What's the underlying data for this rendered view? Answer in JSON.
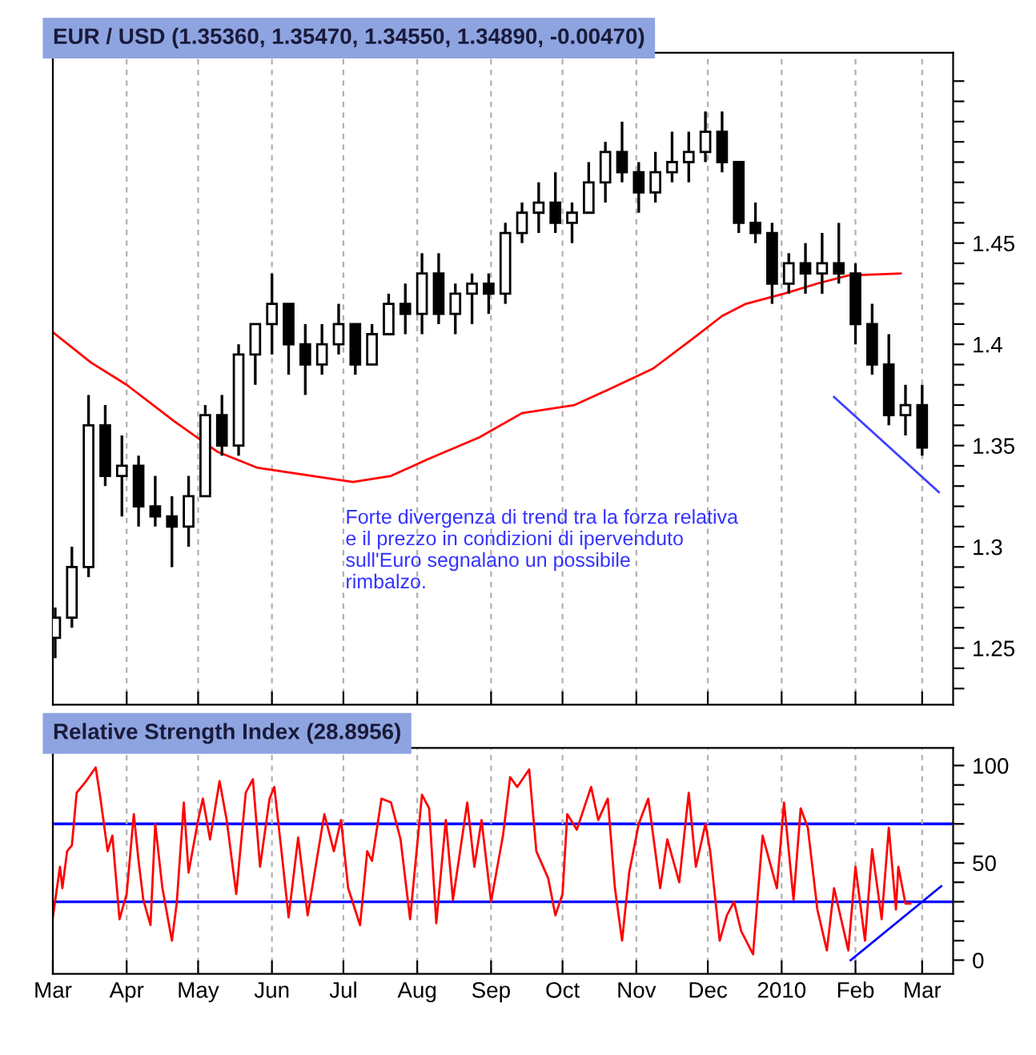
{
  "chart_data": [
    {
      "type": "candlestick",
      "title": "EUR / USD (1.35360, 1.35470, 1.34550, 1.34890, -0.00470)",
      "color": "#000000",
      "x": [
        "2009-03-02",
        "2009-03-09",
        "2009-03-16",
        "2009-03-23",
        "2009-03-30",
        "2009-04-06",
        "2009-04-13",
        "2009-04-20",
        "2009-04-27",
        "2009-05-04",
        "2009-05-11",
        "2009-05-18",
        "2009-05-25",
        "2009-06-01",
        "2009-06-08",
        "2009-06-15",
        "2009-06-22",
        "2009-06-29",
        "2009-07-06",
        "2009-07-13",
        "2009-07-20",
        "2009-07-27",
        "2009-08-03",
        "2009-08-10",
        "2009-08-17",
        "2009-08-24",
        "2009-08-31",
        "2009-09-07",
        "2009-09-14",
        "2009-09-21",
        "2009-09-28",
        "2009-10-05",
        "2009-10-12",
        "2009-10-19",
        "2009-10-26",
        "2009-11-02",
        "2009-11-09",
        "2009-11-16",
        "2009-11-23",
        "2009-11-30",
        "2009-12-07",
        "2009-12-14",
        "2009-12-21",
        "2009-12-28",
        "2010-01-04",
        "2010-01-11",
        "2010-01-18",
        "2010-01-25",
        "2010-02-01",
        "2010-02-08",
        "2010-02-15",
        "2010-02-22",
        "2010-03-01"
      ],
      "ohlc": [
        [
          1.255,
          1.27,
          1.245,
          1.265
        ],
        [
          1.265,
          1.3,
          1.26,
          1.29
        ],
        [
          1.29,
          1.375,
          1.285,
          1.36
        ],
        [
          1.36,
          1.37,
          1.33,
          1.335
        ],
        [
          1.335,
          1.355,
          1.315,
          1.34
        ],
        [
          1.34,
          1.345,
          1.31,
          1.32
        ],
        [
          1.32,
          1.335,
          1.31,
          1.315
        ],
        [
          1.315,
          1.325,
          1.29,
          1.31
        ],
        [
          1.31,
          1.335,
          1.3,
          1.325
        ],
        [
          1.325,
          1.37,
          1.325,
          1.365
        ],
        [
          1.365,
          1.375,
          1.345,
          1.35
        ],
        [
          1.35,
          1.4,
          1.345,
          1.395
        ],
        [
          1.395,
          1.41,
          1.38,
          1.41
        ],
        [
          1.41,
          1.435,
          1.395,
          1.42
        ],
        [
          1.42,
          1.42,
          1.385,
          1.4
        ],
        [
          1.4,
          1.41,
          1.375,
          1.39
        ],
        [
          1.39,
          1.41,
          1.385,
          1.4
        ],
        [
          1.4,
          1.42,
          1.395,
          1.41
        ],
        [
          1.41,
          1.41,
          1.385,
          1.39
        ],
        [
          1.39,
          1.41,
          1.39,
          1.405
        ],
        [
          1.405,
          1.425,
          1.405,
          1.42
        ],
        [
          1.42,
          1.43,
          1.405,
          1.415
        ],
        [
          1.415,
          1.445,
          1.405,
          1.435
        ],
        [
          1.435,
          1.445,
          1.41,
          1.415
        ],
        [
          1.415,
          1.43,
          1.405,
          1.425
        ],
        [
          1.425,
          1.435,
          1.41,
          1.43
        ],
        [
          1.43,
          1.435,
          1.415,
          1.425
        ],
        [
          1.425,
          1.46,
          1.42,
          1.455
        ],
        [
          1.455,
          1.47,
          1.45,
          1.465
        ],
        [
          1.465,
          1.48,
          1.455,
          1.47
        ],
        [
          1.47,
          1.485,
          1.455,
          1.46
        ],
        [
          1.46,
          1.47,
          1.45,
          1.465
        ],
        [
          1.465,
          1.49,
          1.465,
          1.48
        ],
        [
          1.48,
          1.5,
          1.47,
          1.495
        ],
        [
          1.495,
          1.51,
          1.48,
          1.485
        ],
        [
          1.485,
          1.49,
          1.465,
          1.475
        ],
        [
          1.475,
          1.495,
          1.47,
          1.485
        ],
        [
          1.485,
          1.505,
          1.48,
          1.49
        ],
        [
          1.49,
          1.505,
          1.48,
          1.495
        ],
        [
          1.495,
          1.515,
          1.49,
          1.505
        ],
        [
          1.505,
          1.515,
          1.485,
          1.49
        ],
        [
          1.49,
          1.49,
          1.455,
          1.46
        ],
        [
          1.46,
          1.47,
          1.45,
          1.455
        ],
        [
          1.455,
          1.46,
          1.42,
          1.43
        ],
        [
          1.43,
          1.445,
          1.425,
          1.44
        ],
        [
          1.44,
          1.45,
          1.425,
          1.435
        ],
        [
          1.435,
          1.455,
          1.425,
          1.44
        ],
        [
          1.44,
          1.46,
          1.43,
          1.435
        ],
        [
          1.435,
          1.44,
          1.4,
          1.41
        ],
        [
          1.41,
          1.42,
          1.385,
          1.39
        ],
        [
          1.39,
          1.405,
          1.36,
          1.365
        ],
        [
          1.365,
          1.38,
          1.355,
          1.37
        ],
        [
          1.37,
          1.38,
          1.345,
          1.349
        ]
      ],
      "series": [
        {
          "type": "line",
          "color": "#ff0000",
          "x": [
            "2009-03-01",
            "2009-03-17",
            "2009-04-01",
            "2009-04-21",
            "2009-05-09",
            "2009-05-26",
            "2009-06-18",
            "2009-07-05",
            "2009-07-21",
            "2009-08-05",
            "2009-08-27",
            "2009-09-14",
            "2009-10-06",
            "2009-10-21",
            "2009-11-08",
            "2009-11-26",
            "2009-12-07",
            "2009-12-17",
            "2010-01-02",
            "2010-01-16",
            "2010-01-29",
            "2010-02-20"
          ],
          "values": [
            1.406,
            1.391,
            1.38,
            1.362,
            1.347,
            1.339,
            1.335,
            1.332,
            1.335,
            1.343,
            1.354,
            1.366,
            1.37,
            1.378,
            1.388,
            1.404,
            1.414,
            1.42,
            1.425,
            1.43,
            1.434,
            1.435
          ]
        },
        {
          "type": "line",
          "color": "#4040ff",
          "x": [
            "2010-01-23",
            "2010-03-08"
          ],
          "values": [
            1.374,
            1.327
          ]
        }
      ],
      "annotations": [
        "Forte divergenza di trend tra la forza relativa\ne il prezzo in condizioni di ipervenduto\nsull'Euro segnalano un possibile\nrimbalzo."
      ],
      "xlim": [
        "2009-03-01",
        "2010-03-14"
      ],
      "xticks": [
        {
          "value": "2009-04-01",
          "label": null
        },
        {
          "value": "2009-05-01",
          "label": null
        },
        {
          "value": "2009-06-01",
          "label": null
        },
        {
          "value": "2009-07-01",
          "label": null
        },
        {
          "value": "2009-08-01",
          "label": null
        },
        {
          "value": "2009-09-01",
          "label": null
        },
        {
          "value": "2009-10-01",
          "label": null
        },
        {
          "value": "2009-11-01",
          "label": null
        },
        {
          "value": "2009-12-01",
          "label": null
        },
        {
          "value": "2010-01-01",
          "label": null
        },
        {
          "value": "2010-02-01",
          "label": null
        },
        {
          "value": "2010-03-01",
          "label": null
        }
      ],
      "ylim": [
        1.222,
        1.544
      ],
      "yticks": [
        {
          "value": 1.23,
          "label": null
        },
        {
          "value": 1.24,
          "label": null
        },
        1.25,
        {
          "value": 1.26,
          "label": null
        },
        {
          "value": 1.27,
          "label": null
        },
        {
          "value": 1.28,
          "label": null
        },
        {
          "value": 1.29,
          "label": null
        },
        1.3,
        {
          "value": 1.31,
          "label": null
        },
        {
          "value": 1.32,
          "label": null
        },
        {
          "value": 1.33,
          "label": null
        },
        {
          "value": 1.34,
          "label": null
        },
        1.35,
        {
          "value": 1.36,
          "label": null
        },
        {
          "value": 1.37,
          "label": null
        },
        {
          "value": 1.38,
          "label": null
        },
        {
          "value": 1.39,
          "label": null
        },
        1.4,
        {
          "value": 1.41,
          "label": null
        },
        {
          "value": 1.42,
          "label": null
        },
        {
          "value": 1.43,
          "label": null
        },
        {
          "value": 1.44,
          "label": null
        },
        1.45,
        {
          "value": 1.46,
          "label": null
        },
        {
          "value": 1.47,
          "label": null
        },
        {
          "value": 1.48,
          "label": null
        },
        {
          "value": 1.49,
          "label": null
        },
        {
          "value": 1.5,
          "label": null
        },
        {
          "value": 1.51,
          "label": null
        },
        {
          "value": 1.52,
          "label": null
        },
        {
          "value": 1.53,
          "label": null
        }
      ],
      "grid": "x",
      "tick_labels": "y"
    },
    {
      "type": "line",
      "title": "Relative Strength Index (28.8956)",
      "series": [
        {
          "color": "#ff0000",
          "x": [
            "2009-03-01",
            "2009-03-04",
            "2009-03-05",
            "2009-03-07",
            "2009-03-09",
            "2009-03-11",
            "2009-03-15",
            "2009-03-19",
            "2009-03-21",
            "2009-03-24",
            "2009-03-26",
            "2009-03-29",
            "2009-04-01",
            "2009-04-04",
            "2009-04-06",
            "2009-04-08",
            "2009-04-11",
            "2009-04-13",
            "2009-04-16",
            "2009-04-20",
            "2009-04-22",
            "2009-04-25",
            "2009-04-27",
            "2009-05-01",
            "2009-05-03",
            "2009-05-06",
            "2009-05-10",
            "2009-05-13",
            "2009-05-17",
            "2009-05-21",
            "2009-05-24",
            "2009-05-27",
            "2009-05-31",
            "2009-06-02",
            "2009-06-05",
            "2009-06-08",
            "2009-06-12",
            "2009-06-16",
            "2009-06-20",
            "2009-06-23",
            "2009-06-27",
            "2009-06-30",
            "2009-07-03",
            "2009-07-08",
            "2009-07-11",
            "2009-07-13",
            "2009-07-17",
            "2009-07-21",
            "2009-07-25",
            "2009-07-29",
            "2009-08-03",
            "2009-08-06",
            "2009-08-09",
            "2009-08-13",
            "2009-08-16",
            "2009-08-22",
            "2009-08-25",
            "2009-08-28",
            "2009-09-01",
            "2009-09-06",
            "2009-09-09",
            "2009-09-12",
            "2009-09-17",
            "2009-09-20",
            "2009-09-25",
            "2009-09-28",
            "2009-10-01",
            "2009-10-03",
            "2009-10-07",
            "2009-10-13",
            "2009-10-16",
            "2009-10-20",
            "2009-10-23",
            "2009-10-26",
            "2009-10-29",
            "2009-11-02",
            "2009-11-06",
            "2009-11-11",
            "2009-11-14",
            "2009-11-19",
            "2009-11-23",
            "2009-11-26",
            "2009-11-30",
            "2009-12-02",
            "2009-12-06",
            "2009-12-09",
            "2009-12-12",
            "2009-12-15",
            "2009-12-20",
            "2009-12-24",
            "2009-12-30",
            "2010-01-02",
            "2010-01-06",
            "2010-01-09",
            "2010-01-12",
            "2010-01-16",
            "2010-01-20",
            "2010-01-23",
            "2010-01-29",
            "2010-02-01",
            "2010-02-05",
            "2010-02-08",
            "2010-02-12",
            "2010-02-15",
            "2010-02-18",
            "2010-02-19",
            "2010-02-22",
            "2010-02-24"
          ],
          "values": [
            22,
            48,
            37,
            56,
            59,
            86,
            92,
            99,
            83,
            56,
            64,
            21,
            34,
            75,
            51,
            31,
            18,
            70,
            37,
            10,
            29,
            81,
            45,
            72,
            83,
            62,
            92,
            72,
            34,
            86,
            93,
            48,
            83,
            89,
            56,
            22,
            63,
            23,
            53,
            75,
            56,
            72,
            37,
            18,
            56,
            51,
            83,
            81,
            62,
            21,
            85,
            78,
            19,
            72,
            31,
            81,
            48,
            72,
            30,
            64,
            94,
            89,
            98,
            56,
            42,
            23,
            34,
            75,
            67,
            89,
            72,
            83,
            37,
            10,
            45,
            70,
            83,
            37,
            62,
            40,
            86,
            48,
            70,
            56,
            10,
            23,
            30,
            15,
            3,
            64,
            37,
            81,
            31,
            78,
            68,
            26,
            5,
            37,
            5,
            48,
            10,
            57,
            21,
            68,
            26,
            48,
            29,
            29
          ]
        },
        {
          "color": "#0000ff",
          "x": [
            "2010-01-30",
            "2010-03-09"
          ],
          "values": [
            0,
            38
          ]
        }
      ],
      "ref_lines": [
        {
          "axis": "y",
          "value": 30,
          "color": "#0000ff"
        },
        {
          "axis": "y",
          "value": 70,
          "color": "#0000ff"
        }
      ],
      "xlim": [
        "2009-03-01",
        "2010-03-14"
      ],
      "xticks": [
        {
          "value": "2009-03-01",
          "label": "Mar"
        },
        {
          "value": "2009-04-01",
          "label": "Apr"
        },
        {
          "value": "2009-05-01",
          "label": "May"
        },
        {
          "value": "2009-06-01",
          "label": "Jun"
        },
        {
          "value": "2009-07-01",
          "label": "Jul"
        },
        {
          "value": "2009-08-01",
          "label": "Aug"
        },
        {
          "value": "2009-09-01",
          "label": "Sep"
        },
        {
          "value": "2009-10-01",
          "label": "Oct"
        },
        {
          "value": "2009-11-01",
          "label": "Nov"
        },
        {
          "value": "2009-12-01",
          "label": "Dec"
        },
        {
          "value": "2010-01-01",
          "label": "2010"
        },
        {
          "value": "2010-02-01",
          "label": "Feb"
        },
        {
          "value": "2010-03-01",
          "label": "Mar"
        }
      ],
      "ylim": [
        -7,
        109
      ],
      "yticks": [
        0,
        {
          "value": 10,
          "label": null
        },
        {
          "value": 20,
          "label": null
        },
        {
          "value": 30,
          "label": null
        },
        {
          "value": 40,
          "label": null
        },
        50,
        {
          "value": 60,
          "label": null
        },
        {
          "value": 70,
          "label": null
        },
        {
          "value": 80,
          "label": null
        },
        {
          "value": 90,
          "label": null
        },
        100
      ],
      "grid": "x"
    }
  ]
}
